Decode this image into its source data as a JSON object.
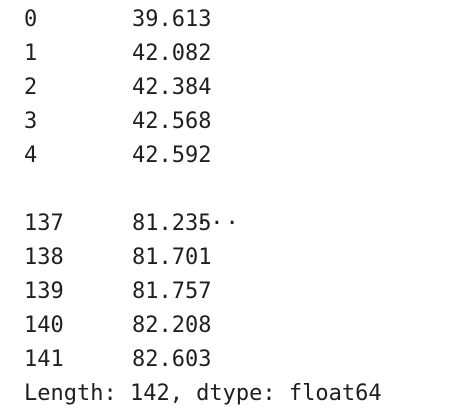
{
  "series": {
    "head": [
      {
        "index": "0",
        "value": "39.613"
      },
      {
        "index": "1",
        "value": "42.082"
      },
      {
        "index": "2",
        "value": "42.384"
      },
      {
        "index": "3",
        "value": "42.568"
      },
      {
        "index": "4",
        "value": "42.592"
      }
    ],
    "ellipsis": "...",
    "tail": [
      {
        "index": "137",
        "value": "81.235"
      },
      {
        "index": "138",
        "value": "81.701"
      },
      {
        "index": "139",
        "value": "81.757"
      },
      {
        "index": "140",
        "value": "82.208"
      },
      {
        "index": "141",
        "value": "82.603"
      }
    ],
    "footer": "Length: 142, dtype: float64"
  }
}
